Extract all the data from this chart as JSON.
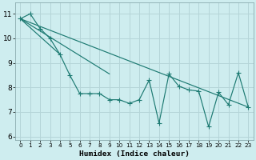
{
  "background_color": "#ceedef",
  "grid_color": "#b5d5d8",
  "line_color": "#1d7a72",
  "xlabel": "Humidex (Indice chaleur)",
  "xlim": [
    -0.5,
    23.5
  ],
  "ylim": [
    5.85,
    11.45
  ],
  "yticks": [
    6,
    7,
    8,
    9,
    10,
    11
  ],
  "xtick_labels": [
    "0",
    "1",
    "2",
    "3",
    "4",
    "5",
    "6",
    "7",
    "8",
    "9",
    "10",
    "11",
    "12",
    "13",
    "14",
    "15",
    "16",
    "17",
    "18",
    "19",
    "20",
    "21",
    "22",
    "23"
  ],
  "main_x": [
    0,
    1,
    2,
    3,
    4,
    5,
    6,
    7,
    8,
    9,
    10,
    11,
    12,
    13,
    14,
    15,
    16,
    17,
    18,
    19,
    20,
    21,
    22,
    23
  ],
  "main_y": [
    10.8,
    11.0,
    10.4,
    10.0,
    9.35,
    8.5,
    7.75,
    7.75,
    7.75,
    7.5,
    7.5,
    7.35,
    7.5,
    8.3,
    6.55,
    8.55,
    8.05,
    7.9,
    7.85,
    6.4,
    7.8,
    7.3,
    8.6,
    7.2
  ],
  "straight_lines": [
    {
      "x": [
        0,
        23
      ],
      "y": [
        10.8,
        7.2
      ]
    },
    {
      "x": [
        0,
        9
      ],
      "y": [
        10.8,
        8.55
      ]
    },
    {
      "x": [
        0,
        4
      ],
      "y": [
        10.8,
        9.35
      ]
    }
  ]
}
